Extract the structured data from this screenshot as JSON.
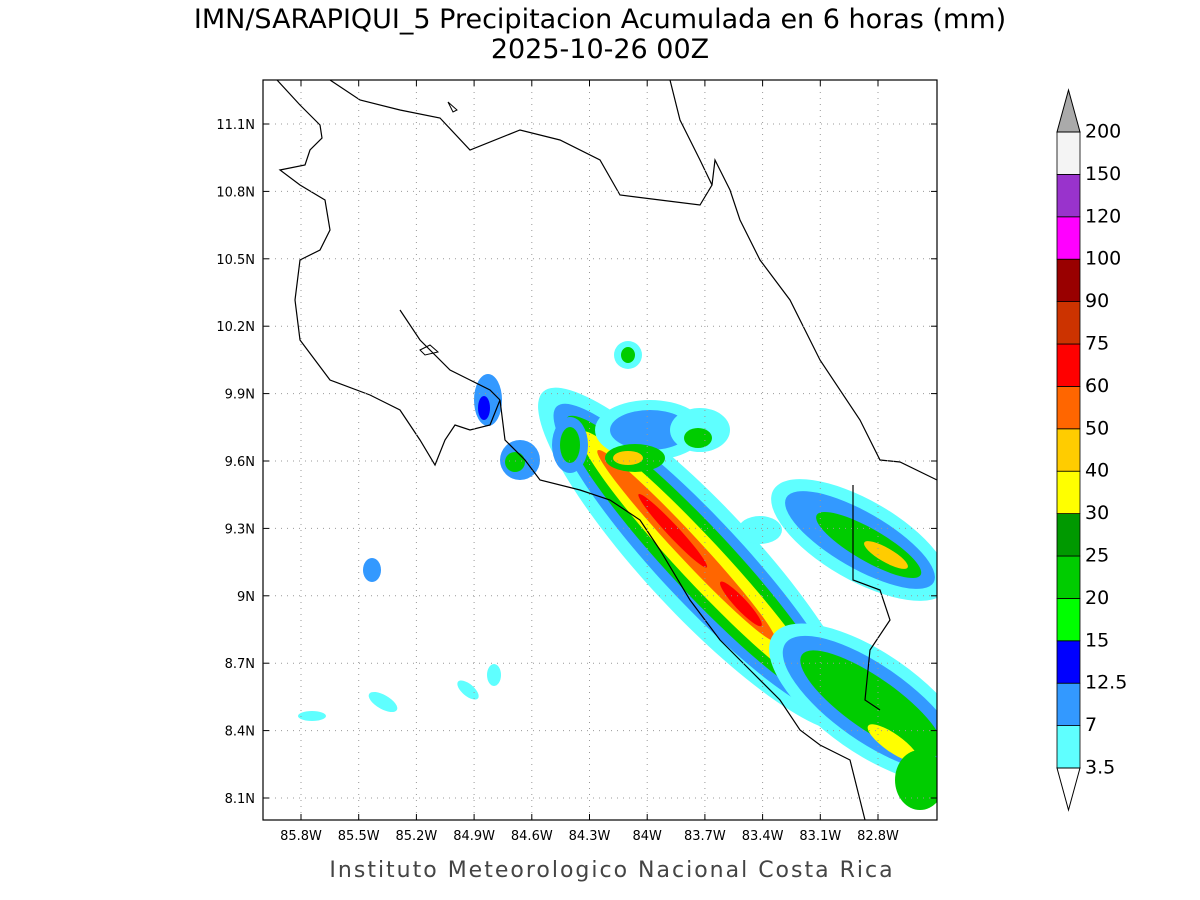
{
  "header": {
    "title": "IMN/SARAPIQUI_5 Precipitacion Acumulada en 6 horas (mm)",
    "subtitle": "2025-10-26 00Z"
  },
  "map": {
    "lat_labels": [
      "11.1N",
      "10.8N",
      "10.5N",
      "10.2N",
      "9.9N",
      "9.6N",
      "9.3N",
      "9N",
      "8.7N",
      "8.4N",
      "8.1N"
    ],
    "lon_labels": [
      "85.8W",
      "85.5W",
      "85.2W",
      "84.9W",
      "84.6W",
      "84.3W",
      "84W",
      "83.7W",
      "83.4W",
      "83.1W",
      "82.8W"
    ]
  },
  "colorbar": {
    "levels": [
      3.5,
      7,
      12.5,
      15,
      20,
      25,
      30,
      40,
      50,
      60,
      75,
      90,
      100,
      120,
      150,
      200
    ],
    "colors": [
      "#5fffff",
      "#3399ff",
      "#0000ff",
      "#00ff00",
      "#00cc00",
      "#009900",
      "#ffff00",
      "#ffcc00",
      "#ff6600",
      "#ff0000",
      "#cc3300",
      "#990000",
      "#ff00ff",
      "#9933cc",
      "#f4f4f4"
    ],
    "under_color": "#ffffff",
    "over_color": "#aaaaaa"
  },
  "footer": "Instituto Meteorologico Nacional Costa Rica"
}
